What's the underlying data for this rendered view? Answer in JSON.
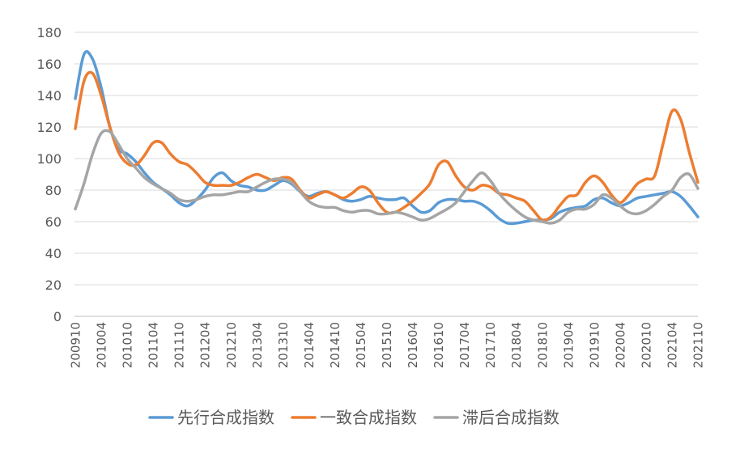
{
  "chart_data": {
    "type": "line",
    "smoothed": true,
    "ylim": [
      0,
      180
    ],
    "y_ticks": [
      0,
      20,
      40,
      60,
      80,
      100,
      120,
      140,
      160,
      180
    ],
    "xtick_labels": [
      "200910",
      "201004",
      "201010",
      "201104",
      "201110",
      "201204",
      "201210",
      "201304",
      "201310",
      "201404",
      "201410",
      "201504",
      "201510",
      "201604",
      "201610",
      "201704",
      "201710",
      "201804",
      "201810",
      "201904",
      "201910",
      "202004",
      "202010",
      "202104",
      "202110"
    ],
    "grid": "horizontal",
    "legend": "bottom-center",
    "x": [
      "200910",
      "200912",
      "201002",
      "201004",
      "201006",
      "201008",
      "201010",
      "201012",
      "201102",
      "201104",
      "201106",
      "201108",
      "201110",
      "201112",
      "201202",
      "201204",
      "201206",
      "201208",
      "201210",
      "201212",
      "201302",
      "201304",
      "201306",
      "201308",
      "201310",
      "201312",
      "201402",
      "201404",
      "201406",
      "201408",
      "201410",
      "201412",
      "201502",
      "201504",
      "201506",
      "201508",
      "201510",
      "201512",
      "201602",
      "201604",
      "201606",
      "201608",
      "201610",
      "201612",
      "201702",
      "201704",
      "201706",
      "201708",
      "201710",
      "201712",
      "201802",
      "201804",
      "201806",
      "201808",
      "201810",
      "201812",
      "201902",
      "201904",
      "201906",
      "201908",
      "201910",
      "201912",
      "202002",
      "202004",
      "202006",
      "202008",
      "202010",
      "202012",
      "202102",
      "202104",
      "202106",
      "202108",
      "202110"
    ],
    "series": [
      {
        "name": "先行合成指数",
        "color": "#5B9BD5",
        "values": [
          138,
          166,
          163,
          145,
          120,
          106,
          103,
          98,
          91,
          85,
          81,
          77,
          72,
          70,
          74,
          80,
          88,
          91,
          86,
          83,
          82,
          80,
          80,
          83,
          86,
          84,
          79,
          76,
          78,
          79,
          77,
          74,
          73,
          74,
          76,
          75,
          74,
          74,
          75,
          70,
          66,
          67,
          72,
          74,
          74,
          73,
          73,
          71,
          67,
          62,
          59,
          59,
          60,
          61,
          61,
          62,
          66,
          68,
          69,
          70,
          74,
          75,
          72,
          70,
          72,
          75,
          76,
          77,
          78,
          79,
          76,
          70,
          63
        ]
      },
      {
        "name": "一致合成指数",
        "color": "#ED7D31",
        "values": [
          119,
          149,
          154,
          140,
          120,
          104,
          97,
          96,
          102,
          110,
          110,
          103,
          98,
          96,
          91,
          85,
          83,
          83,
          83,
          85,
          88,
          90,
          88,
          86,
          88,
          87,
          80,
          75,
          77,
          79,
          77,
          75,
          78,
          82,
          80,
          72,
          66,
          66,
          69,
          73,
          78,
          84,
          96,
          98,
          89,
          82,
          80,
          83,
          82,
          78,
          77,
          75,
          73,
          67,
          61,
          63,
          70,
          76,
          77,
          85,
          89,
          85,
          77,
          72,
          77,
          84,
          87,
          89,
          110,
          130,
          125,
          104,
          85
        ]
      },
      {
        "name": "滞后合成指数",
        "color": "#A5A5A5",
        "values": [
          68,
          84,
          103,
          116,
          117,
          109,
          100,
          94,
          88,
          84,
          81,
          78,
          74,
          73,
          74,
          76,
          77,
          77,
          78,
          79,
          79,
          82,
          85,
          87,
          87,
          85,
          79,
          73,
          70,
          69,
          69,
          67,
          66,
          67,
          67,
          65,
          65,
          66,
          65,
          63,
          61,
          62,
          65,
          68,
          72,
          79,
          86,
          91,
          86,
          78,
          72,
          67,
          63,
          61,
          60,
          59,
          61,
          66,
          68,
          68,
          71,
          77,
          75,
          70,
          66,
          65,
          67,
          71,
          76,
          80,
          88,
          90,
          81
        ]
      }
    ]
  }
}
